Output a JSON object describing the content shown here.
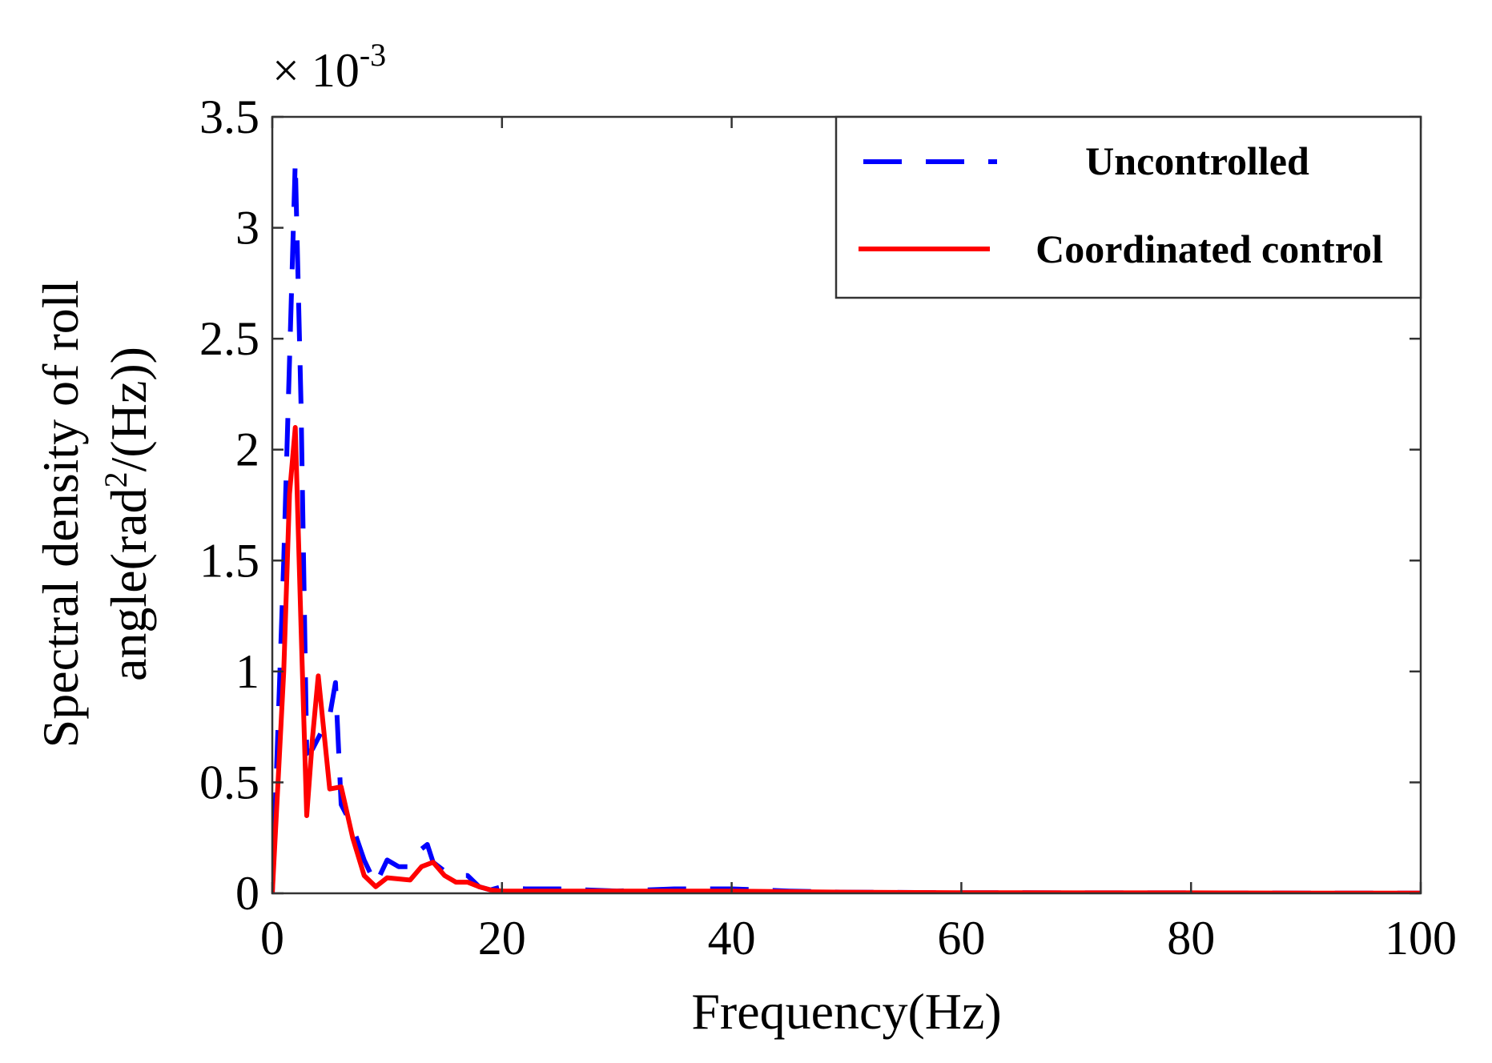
{
  "chart_data": {
    "type": "line",
    "title": "",
    "xlabel": "Frequency(Hz)",
    "ylabel_line1": "Spectral density of roll",
    "ylabel_line2_prefix": "angle(rad",
    "ylabel_line2_sup": "2",
    "ylabel_line2_suffix": "/(Hz))",
    "y_exponent_base": "× 10",
    "y_exponent_power": "-3",
    "xlim": [
      0,
      100
    ],
    "ylim": [
      0,
      3.5
    ],
    "x_ticks": [
      0,
      20,
      40,
      60,
      80,
      100
    ],
    "x_tick_labels": [
      "0",
      "20",
      "40",
      "60",
      "80",
      "100"
    ],
    "y_ticks": [
      0,
      0.5,
      1,
      1.5,
      2,
      2.5,
      3,
      3.5
    ],
    "y_tick_labels": [
      "0",
      "0.5",
      "1",
      "1.5",
      "2",
      "2.5",
      "3",
      "3.5"
    ],
    "grid": false,
    "legend_position": "top-right",
    "series": [
      {
        "name": "Uncontrolled",
        "color": "#0000ff",
        "style": "dashed",
        "x": [
          0,
          1,
          2,
          2.5,
          3,
          3.5,
          4,
          5,
          5.5,
          6,
          7,
          8,
          9,
          10,
          11,
          12,
          13,
          13.5,
          14,
          15,
          16,
          17,
          18,
          19,
          20,
          22,
          25,
          30,
          35,
          40,
          45,
          50,
          60,
          70,
          80,
          90,
          100
        ],
        "values": [
          0,
          1.5,
          3.3,
          2.2,
          0.63,
          0.65,
          0.7,
          0.8,
          0.95,
          0.4,
          0.3,
          0.15,
          0.04,
          0.15,
          0.12,
          0.12,
          0.2,
          0.22,
          0.14,
          0.1,
          0.08,
          0.08,
          0.03,
          0.015,
          0.03,
          0.02,
          0.02,
          0.01,
          0.02,
          0.02,
          0.01,
          0.005,
          0.003,
          0.002,
          0.002,
          0.001,
          0.001
        ]
      },
      {
        "name": "Coordinated control",
        "color": "#ff0000",
        "style": "solid",
        "x": [
          0,
          1,
          1.5,
          2,
          2.5,
          3,
          3.5,
          4,
          5,
          6,
          7,
          8,
          9,
          10,
          11,
          12,
          13,
          14,
          15,
          16,
          17,
          18,
          19,
          20,
          25,
          30,
          35,
          40,
          50,
          60,
          70,
          80,
          90,
          100
        ],
        "values": [
          0,
          1.0,
          1.8,
          2.1,
          1.2,
          0.35,
          0.7,
          0.98,
          0.47,
          0.48,
          0.25,
          0.08,
          0.03,
          0.07,
          0.065,
          0.06,
          0.12,
          0.14,
          0.08,
          0.05,
          0.05,
          0.03,
          0.015,
          0.01,
          0.01,
          0.01,
          0.01,
          0.01,
          0.005,
          0.003,
          0.002,
          0.002,
          0.001,
          0.001
        ]
      }
    ]
  }
}
